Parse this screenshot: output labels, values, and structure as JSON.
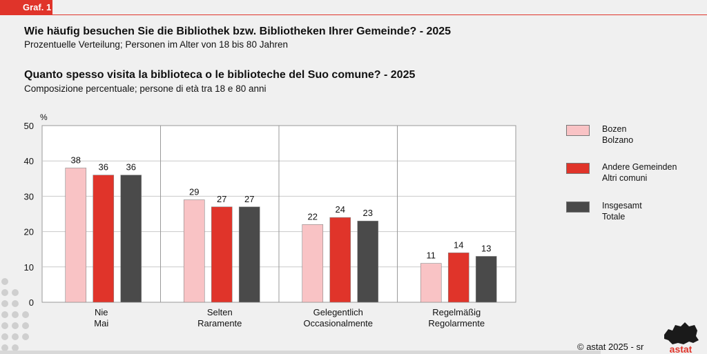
{
  "header": {
    "tag": "Graf. 1"
  },
  "titles": {
    "de_title": "Wie häufig besuchen Sie die Bibliothek bzw. Bibliotheken Ihrer Gemeinde? - 2025",
    "de_subtitle": "Prozentuelle Verteilung; Personen im Alter von 18 bis 80 Jahren",
    "it_title": "Quanto spesso visita la biblioteca o le biblioteche del Suo comune? - 2025",
    "it_subtitle": "Composizione percentuale; persone di età tra 18 e 80 anni"
  },
  "chart_data": {
    "type": "bar",
    "ylabel": "%",
    "ylim": [
      0,
      50
    ],
    "yticks": [
      0,
      10,
      20,
      30,
      40,
      50
    ],
    "grid": true,
    "categories": [
      [
        "Nie",
        "Mai"
      ],
      [
        "Selten",
        "Raramente"
      ],
      [
        "Gelegentlich",
        "Occasionalmente"
      ],
      [
        "Regelmäßig",
        "Regolarmente"
      ]
    ],
    "series": [
      {
        "name": [
          "Bozen",
          "Bolzano"
        ],
        "color": "#f9c3c5",
        "values": [
          38,
          29,
          22,
          11
        ]
      },
      {
        "name": [
          "Andere Gemeinden",
          "Altri comuni"
        ],
        "color": "#e0342a",
        "values": [
          36,
          27,
          24,
          14
        ]
      },
      {
        "name": [
          "Insgesamt",
          "Totale"
        ],
        "color": "#4a4a4a",
        "values": [
          36,
          27,
          23,
          13
        ]
      }
    ],
    "legend_position": "right"
  },
  "legend": [
    {
      "line1": "Bozen",
      "line2": "Bolzano",
      "color": "#f9c3c5"
    },
    {
      "line1": "Andere Gemeinden",
      "line2": "Altri comuni",
      "color": "#e0342a"
    },
    {
      "line1": "Insgesamt",
      "line2": "Totale",
      "color": "#4a4a4a"
    }
  ],
  "footer": {
    "copyright": "©  astat 2025 - sr",
    "logo_text": "astat"
  }
}
